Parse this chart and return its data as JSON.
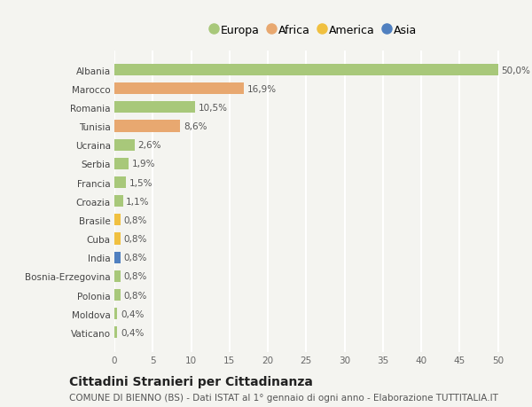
{
  "categories": [
    "Albania",
    "Marocco",
    "Romania",
    "Tunisia",
    "Ucraina",
    "Serbia",
    "Francia",
    "Croazia",
    "Brasile",
    "Cuba",
    "India",
    "Bosnia-Erzegovina",
    "Polonia",
    "Moldova",
    "Vaticano"
  ],
  "values": [
    50.0,
    16.9,
    10.5,
    8.6,
    2.6,
    1.9,
    1.5,
    1.1,
    0.8,
    0.8,
    0.8,
    0.8,
    0.8,
    0.4,
    0.4
  ],
  "labels": [
    "50,0%",
    "16,9%",
    "10,5%",
    "8,6%",
    "2,6%",
    "1,9%",
    "1,5%",
    "1,1%",
    "0,8%",
    "0,8%",
    "0,8%",
    "0,8%",
    "0,8%",
    "0,4%",
    "0,4%"
  ],
  "continents": [
    "Europa",
    "Africa",
    "Europa",
    "Africa",
    "Europa",
    "Europa",
    "Europa",
    "Europa",
    "America",
    "America",
    "Asia",
    "Europa",
    "Europa",
    "Europa",
    "Europa"
  ],
  "colors": {
    "Europa": "#a8c87a",
    "Africa": "#e8a870",
    "America": "#f0c040",
    "Asia": "#5080c0"
  },
  "xlim": [
    0,
    52
  ],
  "xticks": [
    0,
    5,
    10,
    15,
    20,
    25,
    30,
    35,
    40,
    45,
    50
  ],
  "title": "Cittadini Stranieri per Cittadinanza",
  "subtitle": "COMUNE DI BIENNO (BS) - Dati ISTAT al 1° gennaio di ogni anno - Elaborazione TUTTITALIA.IT",
  "background_color": "#f4f4f0",
  "grid_color": "#ffffff",
  "bar_height": 0.62,
  "label_fontsize": 7.5,
  "tick_fontsize": 7.5,
  "ytick_fontsize": 7.5,
  "title_fontsize": 10,
  "subtitle_fontsize": 7.5,
  "legend_items": [
    "Europa",
    "Africa",
    "America",
    "Asia"
  ]
}
